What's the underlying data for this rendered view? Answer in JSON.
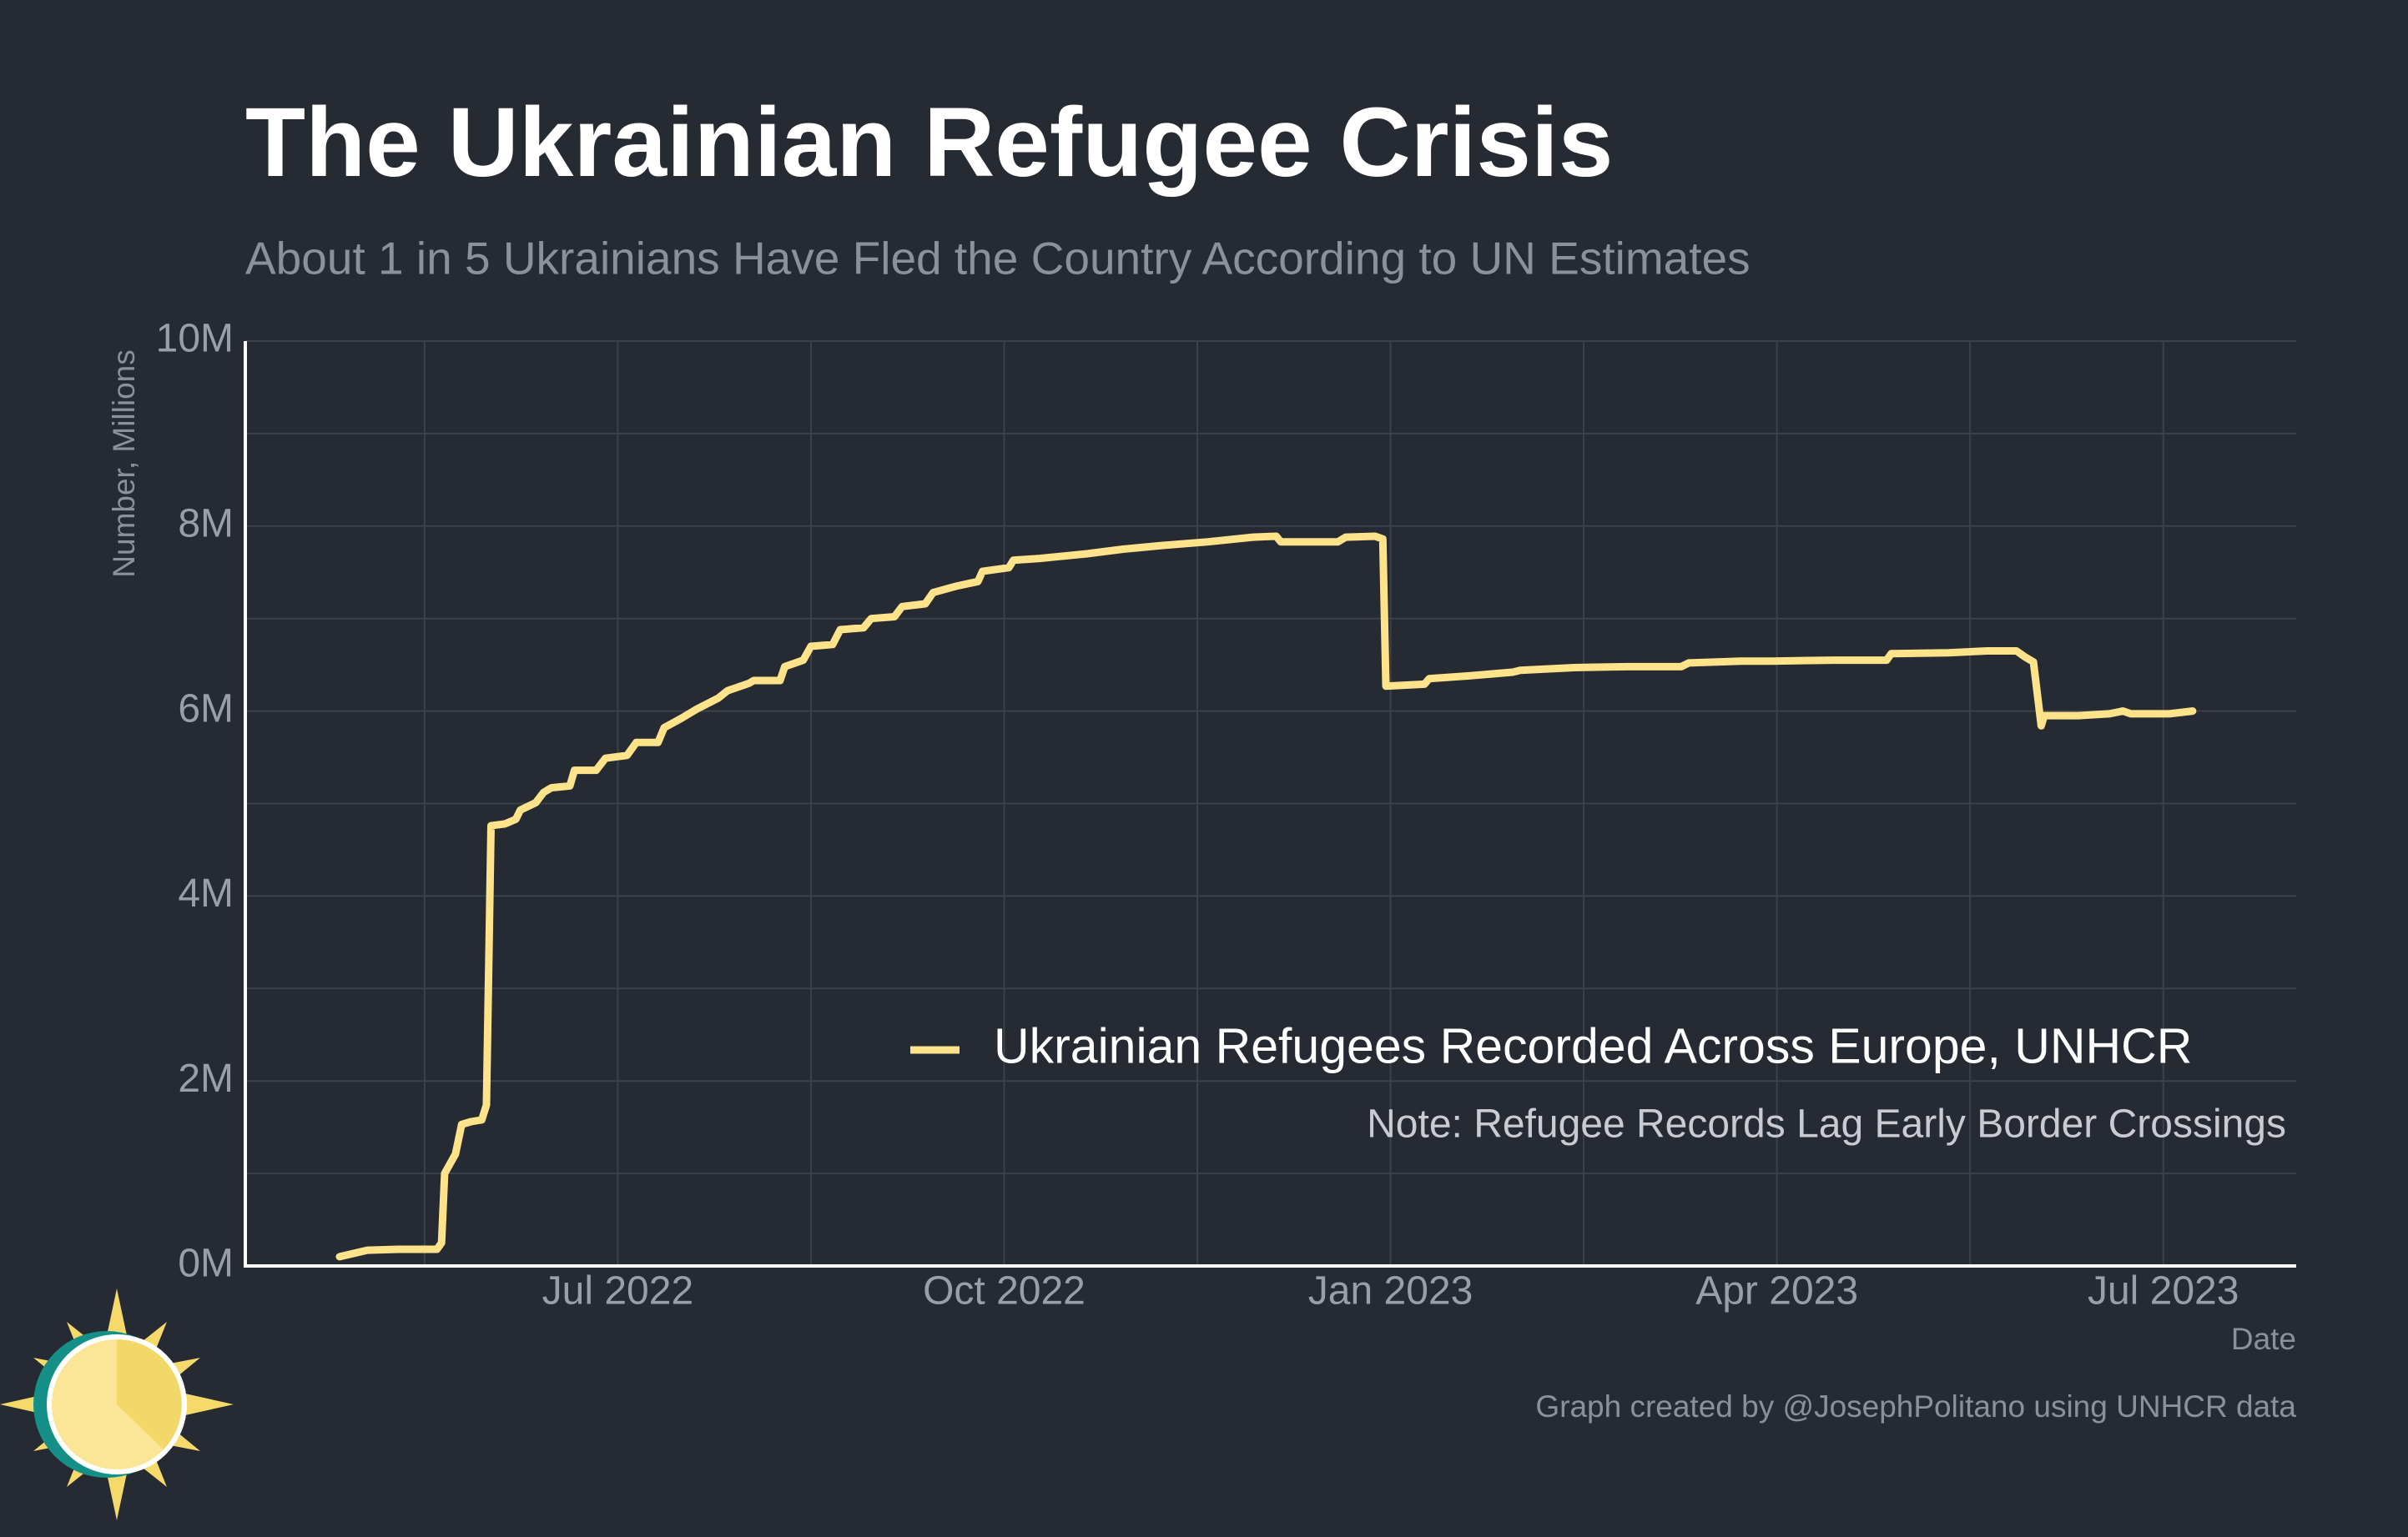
{
  "chart_data": {
    "type": "line",
    "title": "The Ukrainian Refugee Crisis",
    "subtitle": "About 1 in 5 Ukrainians Have Fled the Country According to UN Estimates",
    "y_label": "Number, Millions",
    "x_label": "Date",
    "note": "Note: Refugee Records Lag Early Border Crossings",
    "credit": "Graph created by @JosephPolitano using UNHCR data",
    "legend": "bottom-right",
    "grid": true,
    "xlim": [
      2022.259,
      2023.586
    ],
    "ylim": [
      0,
      10
    ],
    "xticks": [
      {
        "value": 2022.5,
        "label": "Jul 2022"
      },
      {
        "value": 2022.75,
        "label": "Oct 2022"
      },
      {
        "value": 2023.0,
        "label": "Jan 2023"
      },
      {
        "value": 2023.25,
        "label": "Apr 2023"
      },
      {
        "value": 2023.5,
        "label": "Jul 2023"
      }
    ],
    "yticks": [
      {
        "value": 0,
        "label": "0M"
      },
      {
        "value": 2,
        "label": "2M"
      },
      {
        "value": 4,
        "label": "4M"
      },
      {
        "value": 6,
        "label": "6M"
      },
      {
        "value": 8,
        "label": "8M"
      },
      {
        "value": 10,
        "label": "10M"
      }
    ],
    "x_minor_grid": [
      2022.375,
      2022.625,
      2022.875,
      2023.125,
      2023.375
    ],
    "y_minor_grid": [
      1,
      3,
      5,
      7,
      9
    ],
    "x": [
      2022.32,
      2022.338,
      2022.358,
      2022.383,
      2022.386,
      2022.388,
      2022.395,
      2022.399,
      2022.405,
      2022.412,
      2022.415,
      2022.418,
      2022.427,
      2022.434,
      2022.437,
      2022.447,
      2022.452,
      2022.457,
      2022.469,
      2022.472,
      2022.486,
      2022.492,
      2022.506,
      2022.512,
      2022.526,
      2022.53,
      2022.541,
      2022.551,
      2022.565,
      2022.571,
      2022.585,
      2022.588,
      2022.605,
      2022.608,
      2022.62,
      2022.625,
      2022.639,
      2022.644,
      2022.659,
      2022.664,
      2022.679,
      2022.684,
      2022.699,
      2022.704,
      2022.719,
      2022.733,
      2022.736,
      2022.753,
      2022.756,
      2022.773,
      2022.803,
      2022.827,
      2022.852,
      2022.882,
      2022.911,
      2022.926,
      2022.929,
      2022.966,
      2022.971,
      2022.99,
      2022.995,
      2022.997,
      2023.022,
      2023.025,
      2023.05,
      2023.079,
      2023.084,
      2023.119,
      2023.153,
      2023.188,
      2023.193,
      2023.227,
      2023.247,
      2023.287,
      2023.321,
      2023.324,
      2023.361,
      2023.386,
      2023.405,
      2023.411,
      2023.416,
      2023.421,
      2023.423,
      2023.445,
      2023.465,
      2023.474,
      2023.479,
      2023.504,
      2023.519
    ],
    "series": [
      {
        "name": "Ukrainian Refugees Recorded Across Europe, UNHCR",
        "color": "#ffe38a",
        "values": [
          0.1,
          0.17,
          0.18,
          0.18,
          0.25,
          1.0,
          1.21,
          1.53,
          1.56,
          1.58,
          1.74,
          4.76,
          4.78,
          4.83,
          4.93,
          5.01,
          5.12,
          5.17,
          5.19,
          5.36,
          5.36,
          5.49,
          5.52,
          5.66,
          5.66,
          5.82,
          5.92,
          6.02,
          6.14,
          6.22,
          6.3,
          6.33,
          6.33,
          6.48,
          6.55,
          6.7,
          6.72,
          6.88,
          6.9,
          7.0,
          7.02,
          7.13,
          7.16,
          7.28,
          7.35,
          7.4,
          7.51,
          7.55,
          7.63,
          7.65,
          7.7,
          7.75,
          7.79,
          7.83,
          7.88,
          7.89,
          7.83,
          7.83,
          7.88,
          7.89,
          7.86,
          6.27,
          6.29,
          6.35,
          6.38,
          6.42,
          6.44,
          6.47,
          6.48,
          6.48,
          6.52,
          6.54,
          6.54,
          6.55,
          6.55,
          6.62,
          6.63,
          6.65,
          6.65,
          6.58,
          6.53,
          5.84,
          5.95,
          5.95,
          5.97,
          6.0,
          5.97,
          5.97,
          6.0
        ]
      }
    ]
  }
}
